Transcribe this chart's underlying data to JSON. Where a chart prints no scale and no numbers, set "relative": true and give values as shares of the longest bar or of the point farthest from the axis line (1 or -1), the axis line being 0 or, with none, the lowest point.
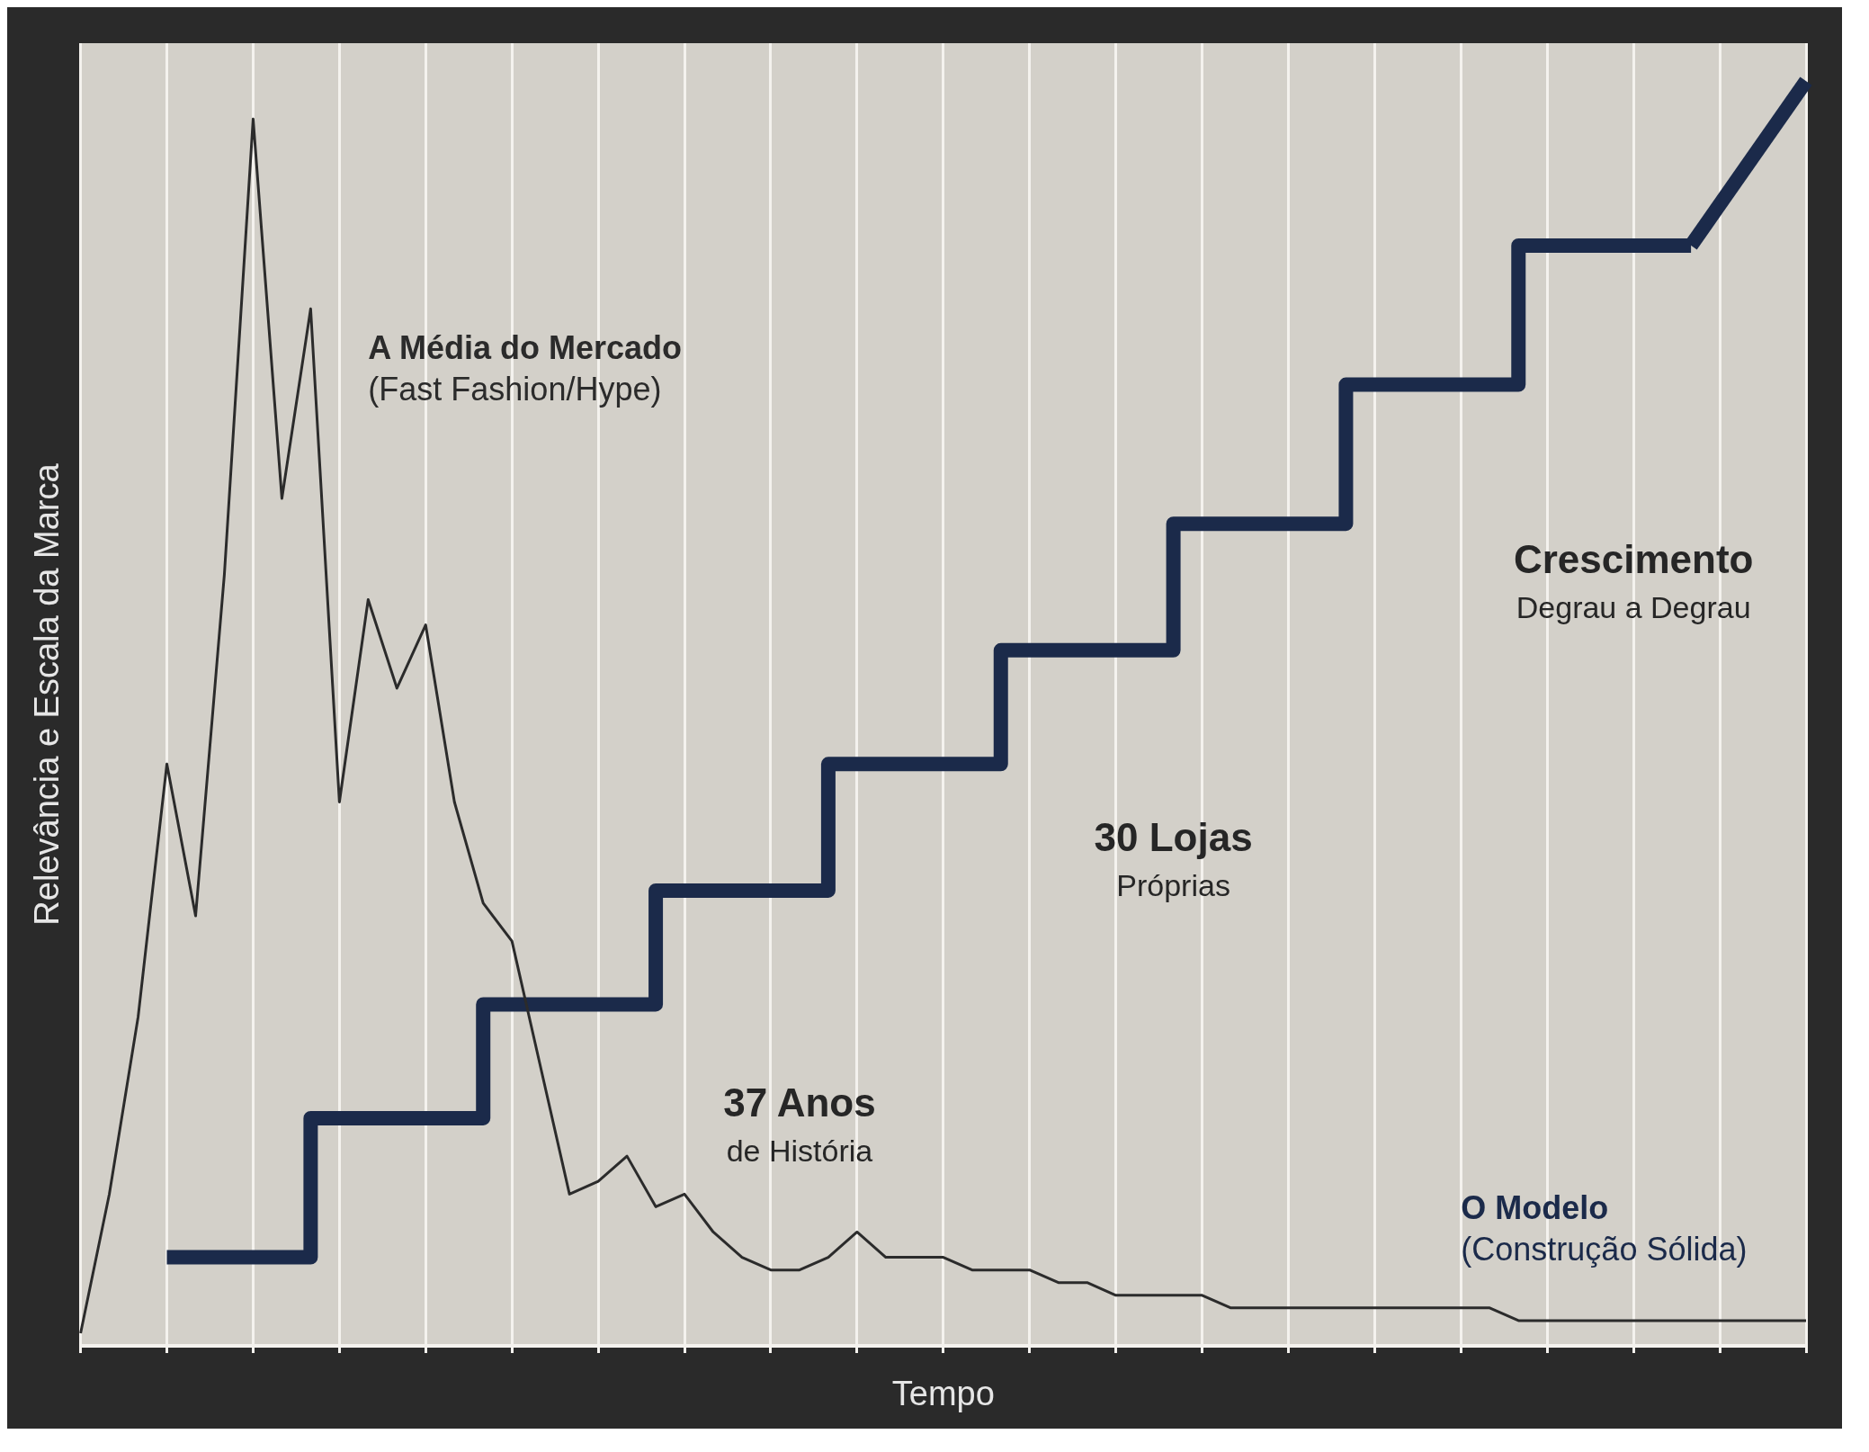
{
  "chart_data": {
    "type": "line",
    "relative": true,
    "xlabel": "Tempo",
    "ylabel": "Relevância e Escala da Marca",
    "grid": "x",
    "marker": "none",
    "categories": [
      null,
      null,
      null,
      null,
      null,
      null,
      null,
      null,
      null,
      null,
      null,
      null,
      null,
      null,
      null,
      null,
      null,
      null,
      null,
      null,
      null,
      null,
      null,
      null,
      null,
      null,
      null,
      null,
      null,
      null,
      null,
      null,
      null,
      null,
      null,
      null,
      null,
      null,
      null,
      null,
      null,
      null,
      null,
      null,
      null,
      null,
      null,
      null,
      null,
      null,
      null,
      null,
      null,
      null,
      null,
      null,
      null,
      null,
      null,
      null,
      null
    ],
    "series": [
      {
        "name": "A Média do Mercado (Fast Fashion/Hype)",
        "color": "#2b2b2b",
        "values": [
          0.01,
          0.12,
          0.26,
          0.46,
          0.34,
          0.61,
          0.97,
          0.67,
          0.82,
          0.43,
          0.59,
          0.52,
          0.57,
          0.43,
          0.35,
          0.32,
          0.22,
          0.12,
          0.13,
          0.15,
          0.11,
          0.12,
          0.09,
          0.07,
          0.06,
          0.06,
          0.07,
          0.09,
          0.07,
          0.07,
          0.07,
          0.06,
          0.06,
          0.06,
          0.05,
          0.05,
          0.04,
          0.04,
          0.04,
          0.04,
          0.03,
          0.03,
          0.03,
          0.03,
          0.03,
          0.03,
          0.03,
          0.03,
          0.03,
          0.03,
          0.02,
          0.02,
          0.02,
          0.02,
          0.02,
          0.02,
          0.02,
          0.02,
          0.02,
          0.02,
          0.02
        ]
      },
      {
        "name": "O Modelo (Construção Sólida)",
        "type": "step",
        "color": "#1b2a4a",
        "values": [
          null,
          null,
          null,
          0.07,
          0.07,
          0.07,
          0.07,
          0.07,
          0.07,
          0.18,
          0.18,
          0.18,
          0.18,
          0.18,
          0.18,
          0.27,
          0.27,
          0.27,
          0.27,
          0.27,
          0.27,
          0.36,
          0.36,
          0.36,
          0.36,
          0.36,
          0.36,
          0.46,
          0.46,
          0.46,
          0.46,
          0.46,
          0.46,
          0.55,
          0.55,
          0.55,
          0.55,
          0.55,
          0.55,
          0.65,
          0.65,
          0.65,
          0.65,
          0.65,
          0.65,
          0.76,
          0.76,
          0.76,
          0.76,
          0.76,
          0.76,
          0.87,
          0.87,
          0.87,
          0.87,
          0.87,
          0.87,
          null,
          null,
          null,
          null
        ]
      },
      {
        "color": "#1b2a4a",
        "values": [
          null,
          null,
          null,
          null,
          null,
          null,
          null,
          null,
          null,
          null,
          null,
          null,
          null,
          null,
          null,
          null,
          null,
          null,
          null,
          null,
          null,
          null,
          null,
          null,
          null,
          null,
          null,
          null,
          null,
          null,
          null,
          null,
          null,
          null,
          null,
          null,
          null,
          null,
          null,
          null,
          null,
          null,
          null,
          null,
          null,
          null,
          null,
          null,
          null,
          null,
          null,
          null,
          null,
          null,
          null,
          null,
          0.87,
          null,
          null,
          null,
          1
        ]
      }
    ],
    "annotations": [
      "37 Anos\nde História",
      "30 Lojas\nPróprias",
      "Crescimento\nDegrau a Degrau"
    ]
  }
}
